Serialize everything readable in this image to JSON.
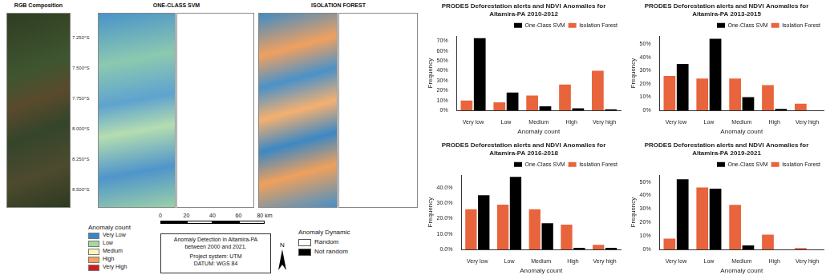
{
  "map": {
    "panels": [
      {
        "title": "RGB Composition"
      },
      {
        "title": "ONE-CLASS SVM"
      },
      {
        "title": "ISOLATION FOREST"
      }
    ],
    "latitude_labels": [
      "7.250°S",
      "7.500°S",
      "7.750°S",
      "8.000°S",
      "8.250°S",
      "8.500°S"
    ],
    "color_legend": {
      "title": "Anomaly count",
      "entries": [
        {
          "label": "Very Low",
          "color": "#3a86c8"
        },
        {
          "label": "Low",
          "color": "#a3d9a0"
        },
        {
          "label": "Medium",
          "color": "#fbf7b8"
        },
        {
          "label": "High",
          "color": "#f5a15a"
        },
        {
          "label": "Very High",
          "color": "#d7191c"
        }
      ]
    },
    "scale_bar": {
      "ticks": [
        0,
        20,
        40,
        60,
        {
          "value": 80,
          "label": "80 km"
        }
      ]
    },
    "info_box": [
      "Anomaly Detection in Altamira-PA between 2000 and 2021.",
      "Project system: UTM",
      "DATUM: WGS 84"
    ],
    "north_arrow": "N",
    "anomaly_dynamic": {
      "title": "Anomaly Dynamic",
      "entries": [
        {
          "label": "Random",
          "color": "#ffffff"
        },
        {
          "label": "Not random",
          "color": "#000000"
        }
      ]
    }
  },
  "chart_data": [
    {
      "type": "bar",
      "title": "PRODES Deforestation alerts and NDVI Anomalies for Altamira-PA 2010-2012",
      "categories": [
        "Very low",
        "Low",
        "Medium",
        "High",
        "Very high"
      ],
      "series": [
        {
          "name": "Isolation Forest",
          "color": "#e8643c",
          "values": [
            10,
            8,
            15,
            26,
            40
          ]
        },
        {
          "name": "One-Class SVM",
          "color": "#000000",
          "values": [
            73,
            18,
            4,
            2,
            1
          ]
        }
      ],
      "x_label": "Anomaly count",
      "y_label": "Frequency",
      "ylim": [
        0,
        75
      ],
      "yticks": [
        {
          "value": 0,
          "label": "0%"
        },
        {
          "value": 10,
          "label": "10%"
        },
        {
          "value": 20,
          "label": "20%"
        },
        {
          "value": 30,
          "label": "30%"
        },
        {
          "value": 40,
          "label": "40%"
        },
        {
          "value": 50,
          "label": "50%"
        },
        {
          "value": 60,
          "label": "60%"
        },
        {
          "value": 70,
          "label": "70%"
        }
      ],
      "grid": false,
      "legend": "upper right"
    },
    {
      "type": "bar",
      "title": "PRODES Deforestation alerts and NDVI Anomalies for Altamira-PA 2013-2015",
      "categories": [
        "Very low",
        "Low",
        "Medium",
        "High",
        "Very high"
      ],
      "series": [
        {
          "name": "Isolation Forest",
          "color": "#e8643c",
          "values": [
            26,
            24,
            24,
            19,
            5
          ]
        },
        {
          "name": "One-Class SVM",
          "color": "#000000",
          "values": [
            35,
            54,
            10,
            1,
            0
          ]
        }
      ],
      "x_label": "Anomaly count",
      "y_label": "Frequency",
      "ylim": [
        0,
        56
      ],
      "yticks": [
        {
          "value": 0,
          "label": "0%"
        },
        {
          "value": 10,
          "label": "10%"
        },
        {
          "value": 20,
          "label": "20%"
        },
        {
          "value": 30,
          "label": "30%"
        },
        {
          "value": 40,
          "label": "40%"
        },
        {
          "value": 50,
          "label": "50%"
        }
      ],
      "grid": false,
      "legend": "upper right"
    },
    {
      "type": "bar",
      "title": "PRODES Deforestation alerts and NDVI Anomalies for Altamira-PA 2016-2018",
      "categories": [
        "Very low",
        "Low",
        "Medium",
        "High",
        "Very high"
      ],
      "series": [
        {
          "name": "Isolation Forest",
          "color": "#e8643c",
          "values": [
            26,
            29,
            26,
            16,
            3
          ]
        },
        {
          "name": "One-Class SVM",
          "color": "#000000",
          "values": [
            35,
            47,
            17,
            1,
            1
          ]
        }
      ],
      "x_label": "Anomaly count",
      "y_label": "Frequency",
      "ylim": [
        0,
        48
      ],
      "yticks": [
        {
          "value": 0,
          "label": "0.0%"
        },
        {
          "value": 10,
          "label": "10.0%"
        },
        {
          "value": 20,
          "label": "20.0%"
        },
        {
          "value": 30,
          "label": "30.0%"
        },
        {
          "value": 40,
          "label": "40.0%"
        }
      ],
      "grid": false,
      "legend": "upper right"
    },
    {
      "type": "bar",
      "title": "PRODES Deforestation alerts and NDVI Anomalies for Altamira-PA 2019-2021",
      "categories": [
        "Very low",
        "Low",
        "Medium",
        "High",
        "Very high"
      ],
      "series": [
        {
          "name": "Isolation Forest",
          "color": "#e8643c",
          "values": [
            8,
            46,
            33,
            11,
            1
          ]
        },
        {
          "name": "One-Class SVM",
          "color": "#000000",
          "values": [
            52,
            45,
            3,
            0,
            0
          ]
        }
      ],
      "x_label": "Anomaly count",
      "y_label": "Frequency",
      "ylim": [
        0,
        55
      ],
      "yticks": [
        {
          "value": 0,
          "label": "0%"
        },
        {
          "value": 10,
          "label": "10%"
        },
        {
          "value": 20,
          "label": "20%"
        },
        {
          "value": 30,
          "label": "30%"
        },
        {
          "value": 40,
          "label": "40%"
        },
        {
          "value": 50,
          "label": "50%"
        }
      ],
      "grid": false,
      "legend": "upper right"
    }
  ]
}
